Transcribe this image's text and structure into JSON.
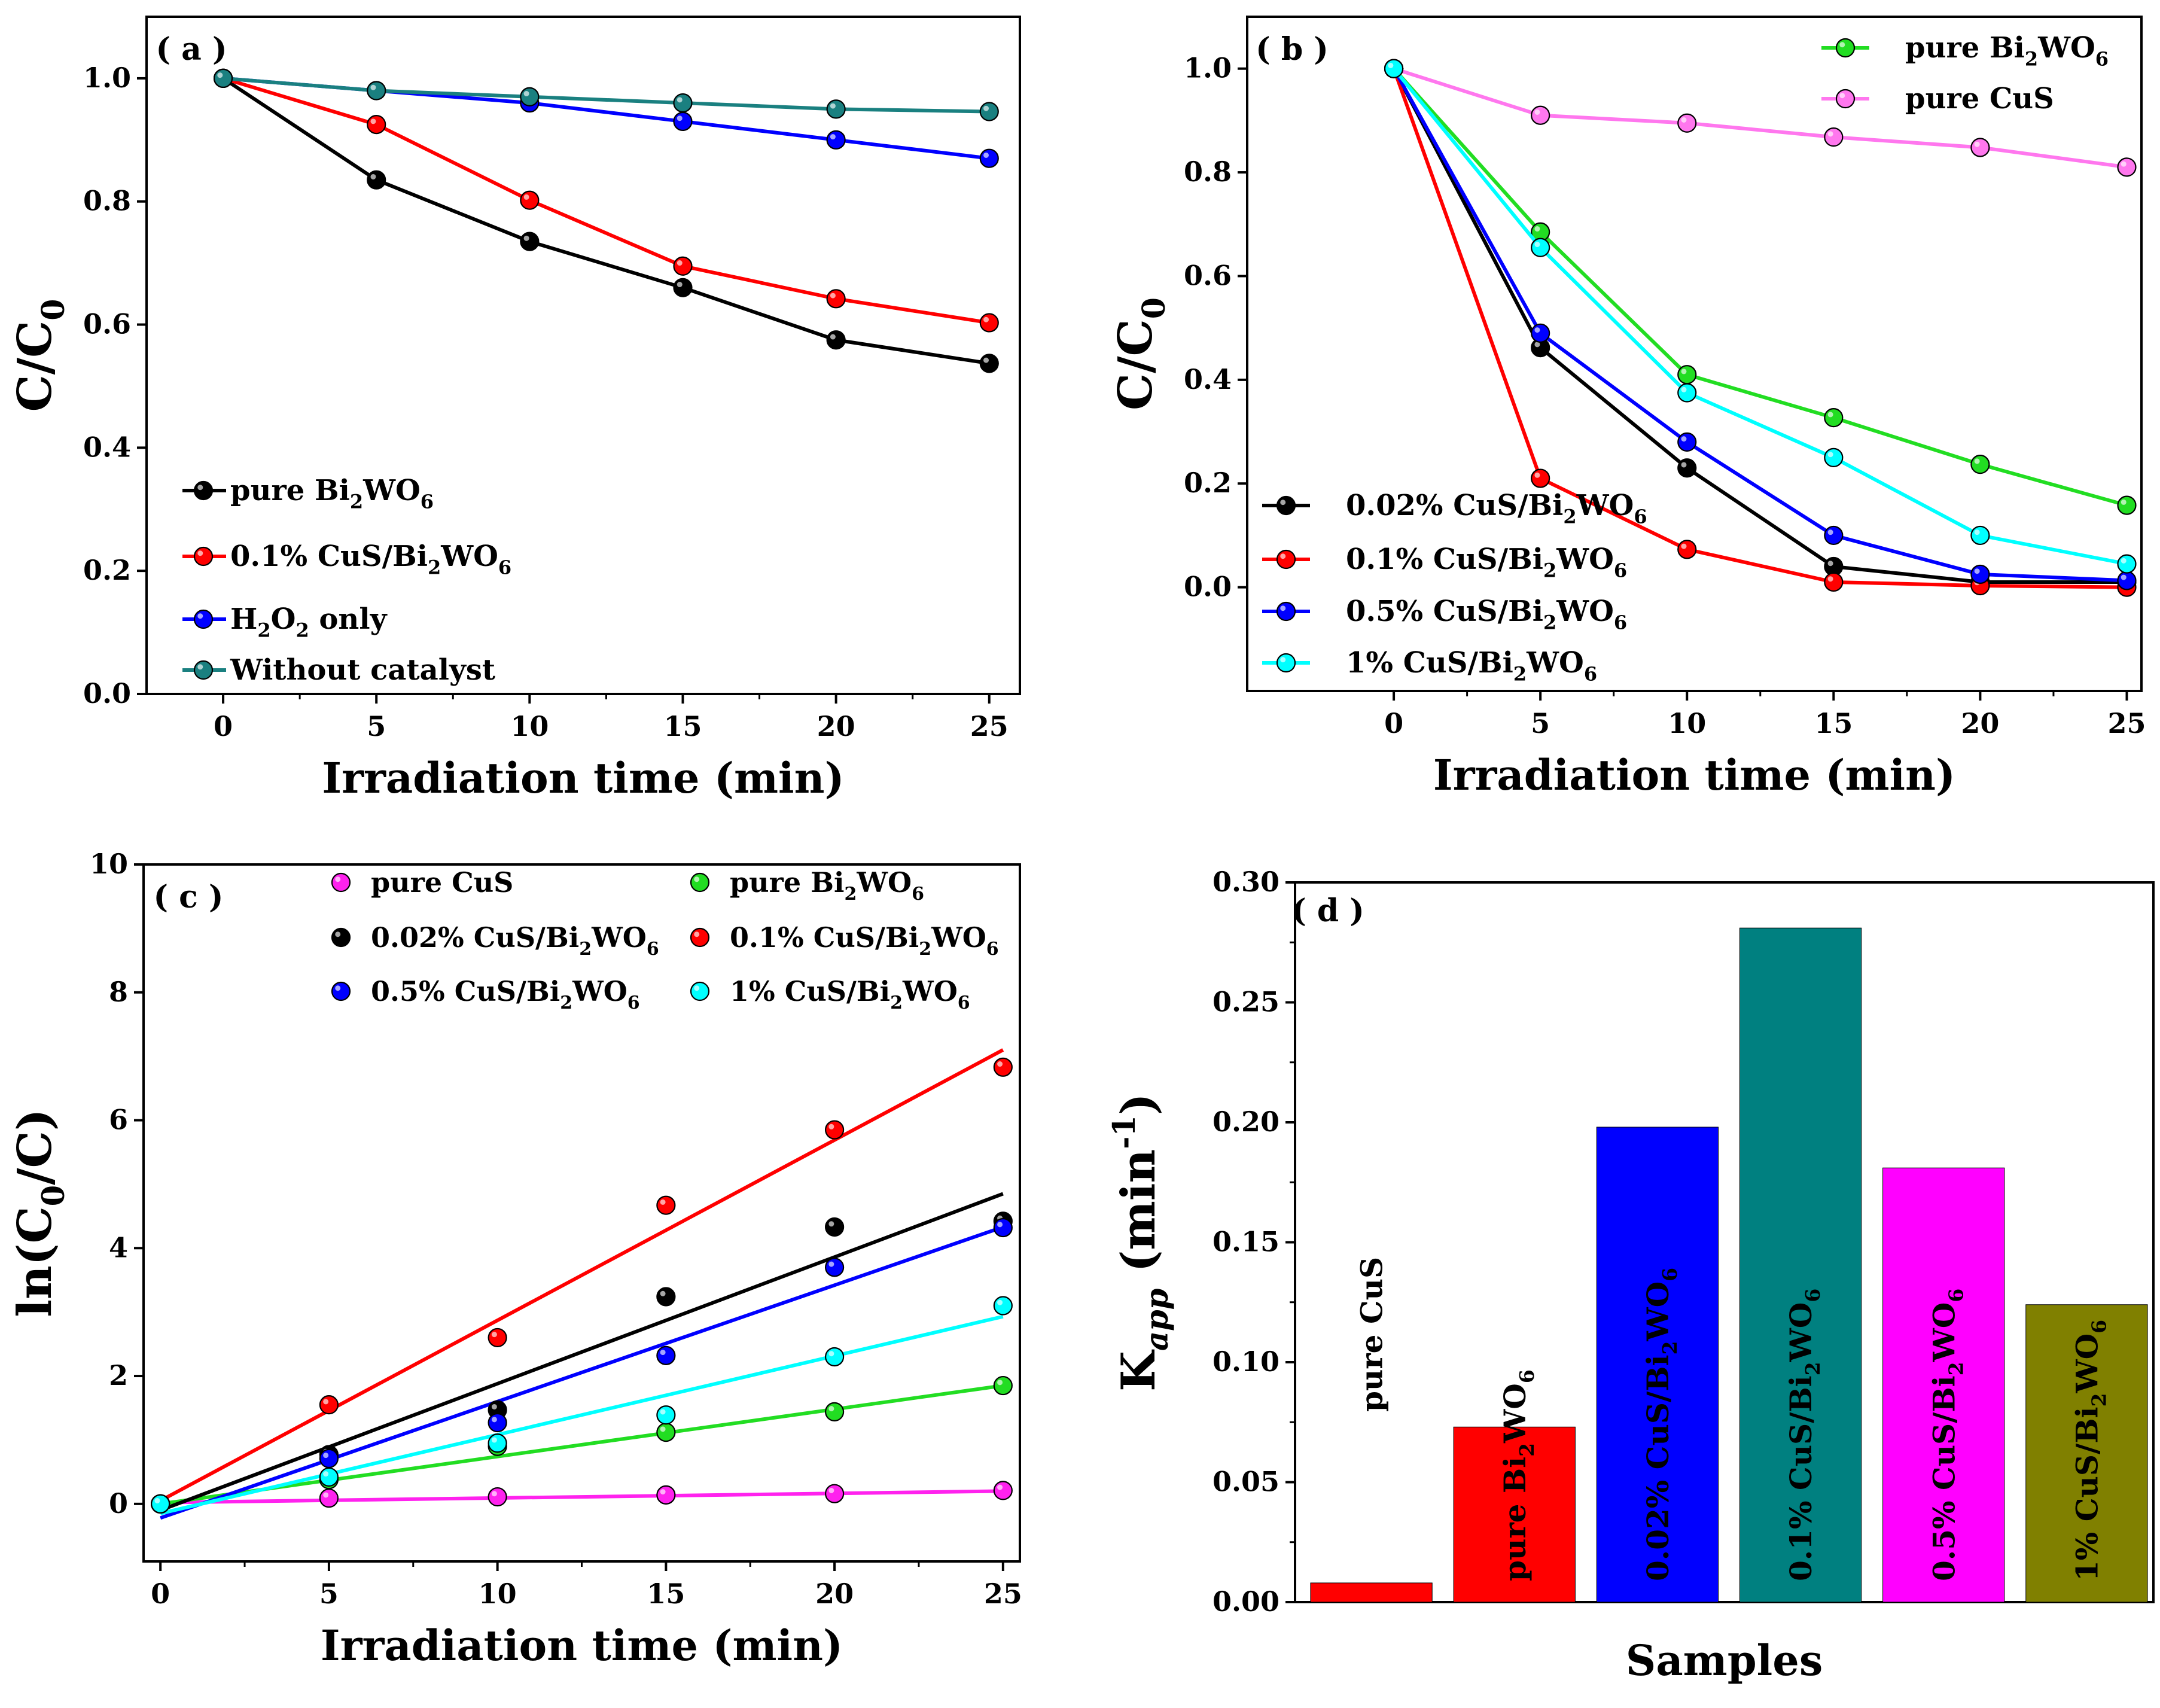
{
  "chart_data": [
    {
      "panel": "a",
      "panel_label": "( a )",
      "type": "line",
      "xlabel": "Irradiation time (min)",
      "ylabel": "C/C",
      "ylabel_sub": "0",
      "xlim": [
        -2.5,
        26
      ],
      "ylim": [
        0,
        1.1
      ],
      "xticks": [
        0,
        5,
        10,
        15,
        20,
        25
      ],
      "yticks": [
        0.0,
        0.2,
        0.4,
        0.6,
        0.8,
        1.0
      ],
      "ytick_labels": [
        "0.0",
        "0.2",
        "0.4",
        "0.6",
        "0.8",
        "1.0"
      ],
      "legend_position": "bottom-left",
      "x": [
        0,
        5,
        10,
        15,
        20,
        25
      ],
      "series": [
        {
          "name": "pure Bi2WO6",
          "label": "pure Bi",
          "label_parts": [
            "pure Bi",
            "2",
            "WO",
            "6"
          ],
          "color": "#000000",
          "values": [
            1.0,
            0.835,
            0.735,
            0.66,
            0.575,
            0.537
          ]
        },
        {
          "name": "0.1% CuS/Bi2WO6",
          "label": "0.1% CuS/Bi",
          "label_parts": [
            "0.1% CuS/Bi",
            "2",
            "WO",
            "6"
          ],
          "color": "#ff0000",
          "values": [
            1.0,
            0.925,
            0.802,
            0.695,
            0.642,
            0.603
          ]
        },
        {
          "name": "H2O2 only",
          "label": "H",
          "label_parts": [
            "H",
            "2",
            "O",
            "2",
            " only"
          ],
          "color": "#0000ff",
          "values": [
            1.0,
            0.98,
            0.96,
            0.93,
            0.9,
            0.87
          ]
        },
        {
          "name": "Without catalyst",
          "label": "Without catalyst",
          "label_parts": [
            "Without catalyst"
          ],
          "color": "#1a8080",
          "values": [
            1.0,
            0.98,
            0.97,
            0.96,
            0.95,
            0.946
          ]
        }
      ]
    },
    {
      "panel": "b",
      "panel_label": "( b )",
      "type": "line",
      "xlabel": "Irradiation time (min)",
      "ylabel": "C/C",
      "ylabel_sub": "0",
      "xlim": [
        -5,
        25.5
      ],
      "ylim": [
        -0.2,
        1.1
      ],
      "xticks": [
        0,
        5,
        10,
        15,
        20,
        25
      ],
      "yticks": [
        0.0,
        0.2,
        0.4,
        0.6,
        0.8,
        1.0
      ],
      "ytick_labels": [
        "0.0",
        "0.2",
        "0.4",
        "0.6",
        "0.8",
        "1.0"
      ],
      "legend_position": "top-right and bottom-left",
      "x": [
        0,
        5,
        10,
        15,
        20,
        25
      ],
      "series": [
        {
          "name": "pure Bi2WO6",
          "label_parts": [
            "pure Bi",
            "2",
            "WO",
            "6"
          ],
          "color": "#22dd22",
          "values": [
            1.0,
            0.685,
            0.41,
            0.327,
            0.237,
            0.158
          ]
        },
        {
          "name": "pure CuS",
          "label_parts": [
            "pure CuS"
          ],
          "color": "#ff77ee",
          "values": [
            1.0,
            0.91,
            0.895,
            0.868,
            0.848,
            0.81
          ]
        },
        {
          "name": "0.02% CuS/Bi2WO6",
          "label_parts": [
            "0.02% CuS/Bi",
            "2",
            "WO",
            "6"
          ],
          "color": "#000000",
          "values": [
            1.0,
            0.462,
            0.23,
            0.04,
            0.01,
            0.01
          ]
        },
        {
          "name": "0.1% CuS/Bi2WO6",
          "label_parts": [
            "0.1% CuS/Bi",
            "2",
            "WO",
            "6"
          ],
          "color": "#ff0000",
          "values": [
            1.0,
            0.21,
            0.073,
            0.01,
            0.003,
            0.0
          ]
        },
        {
          "name": "0.5% CuS/Bi2WO6",
          "label_parts": [
            "0.5% CuS/Bi",
            "2",
            "WO",
            "6"
          ],
          "color": "#0000ff",
          "values": [
            1.0,
            0.49,
            0.28,
            0.1,
            0.025,
            0.013
          ]
        },
        {
          "name": "1% CuS/Bi2WO6",
          "label_parts": [
            "1%  CuS/Bi",
            "2",
            "WO",
            "6"
          ],
          "color": "#00ffff",
          "values": [
            1.0,
            0.655,
            0.375,
            0.25,
            0.1,
            0.045
          ]
        }
      ]
    },
    {
      "panel": "c",
      "panel_label": "( c )",
      "type": "scatter",
      "xlabel": "Irradiation time (min)",
      "ylabel_parts": [
        "ln(C",
        "0",
        "/C)"
      ],
      "xlim": [
        -0.5,
        25.5
      ],
      "ylim": [
        -0.9,
        10
      ],
      "xticks": [
        0,
        5,
        10,
        15,
        20,
        25
      ],
      "yticks": [
        0,
        2,
        4,
        6,
        8,
        10
      ],
      "legend_position": "top",
      "x": [
        0,
        5,
        10,
        15,
        20,
        25
      ],
      "series": [
        {
          "name": "pure CuS",
          "label_parts": [
            "pure    CuS"
          ],
          "color": "#ff22ee",
          "values": [
            0,
            0.09,
            0.11,
            0.14,
            0.16,
            0.21
          ],
          "fit": [
            0.02,
            0.2
          ]
        },
        {
          "name": "pure Bi2WO6",
          "label_parts": [
            "pure    Bi",
            "2",
            "WO",
            "6"
          ],
          "color": "#22dd22",
          "values": [
            0,
            0.38,
            0.9,
            1.12,
            1.44,
            1.85
          ],
          "fit": [
            0.0,
            1.85
          ]
        },
        {
          "name": "0.02% CuS/Bi2WO6",
          "label_parts": [
            "0.02% CuS/Bi",
            "2",
            "WO",
            "6"
          ],
          "color": "#000000",
          "values": [
            0,
            0.77,
            1.47,
            3.24,
            4.33,
            4.42
          ],
          "fit": [
            -0.1,
            4.85
          ]
        },
        {
          "name": "0.1% CuS/Bi2WO6",
          "label_parts": [
            "0.1%  CuS/Bi",
            "2",
            "WO",
            "6"
          ],
          "color": "#ff0000",
          "values": [
            0,
            1.55,
            2.6,
            4.67,
            5.85,
            6.83
          ],
          "fit": [
            0.05,
            7.1
          ]
        },
        {
          "name": "0.5% CuS/Bi2WO6",
          "label_parts": [
            "0.5%  CuS/Bi",
            "2",
            "WO",
            "6"
          ],
          "color": "#0000ff",
          "values": [
            0,
            0.71,
            1.27,
            2.32,
            3.7,
            4.32
          ],
          "fit": [
            -0.22,
            4.33
          ]
        },
        {
          "name": "1% CuS/Bi2WO6",
          "label_parts": [
            "1%         CuS/Bi",
            "2",
            "WO",
            "6"
          ],
          "color": "#00ffff",
          "values": [
            0,
            0.42,
            0.95,
            1.39,
            2.3,
            3.1
          ],
          "fit": [
            -0.15,
            2.93
          ]
        }
      ]
    },
    {
      "panel": "d",
      "panel_label": "( d )",
      "type": "bar",
      "xlabel": "Samples",
      "ylabel_parts": [
        "K",
        "app",
        "  (min",
        "-1",
        ")"
      ],
      "ylim": [
        0,
        0.3
      ],
      "yticks": [
        0.0,
        0.05,
        0.1,
        0.15,
        0.2,
        0.25,
        0.3
      ],
      "ytick_labels": [
        "0.00",
        "0.05",
        "0.10",
        "0.15",
        "0.20",
        "0.25",
        "0.30"
      ],
      "categories": [
        "pure CuS",
        "pure Bi2WO6",
        "0.02% CuS/Bi2WO6",
        "0.1% CuS/Bi2WO6",
        "0.5% CuS/Bi2WO6",
        "1% CuS/Bi2WO6"
      ],
      "values": [
        0.008,
        0.073,
        0.198,
        0.281,
        0.181,
        0.124
      ],
      "colors": [
        "#ff0000",
        "#ff0000",
        "#0000ff",
        "#008080",
        "#ff00ff",
        "#808000"
      ],
      "bar_labels": [
        [
          "pure   CuS"
        ],
        [
          "pure Bi",
          "2",
          "WO",
          "6"
        ],
        [
          "0.02% CuS/Bi",
          "2",
          "WO",
          "6"
        ],
        [
          "0.1% CuS/Bi",
          "2",
          "WO",
          "6"
        ],
        [
          "0.5%  CuS/Bi",
          "2",
          "WO",
          "6"
        ],
        [
          "1%  CuS/Bi",
          "2",
          "WO",
          "6"
        ]
      ]
    }
  ]
}
